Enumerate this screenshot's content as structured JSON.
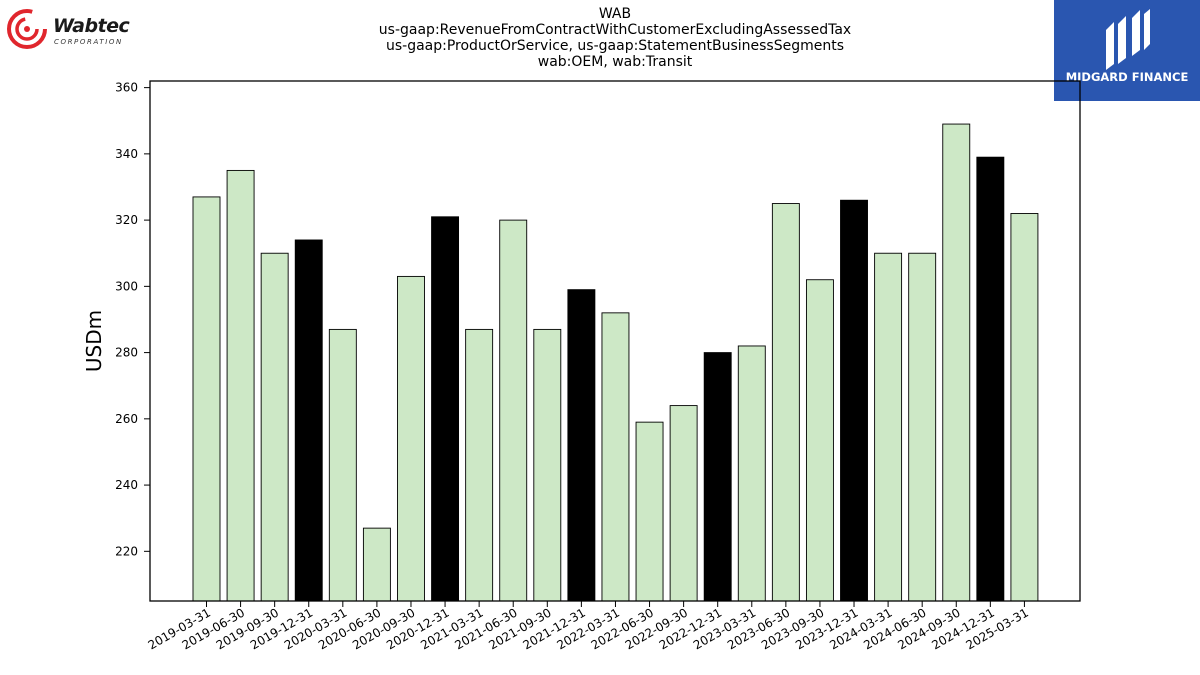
{
  "header": {
    "title_lines": [
      "WAB",
      "us-gaap:RevenueFromContractWithCustomerExcludingAssessedTax",
      "us-gaap:ProductOrService, us-gaap:StatementBusinessSegments",
      "wab:OEM, wab:Transit"
    ]
  },
  "logos": {
    "left_brand": "Wabtec",
    "left_sub": "CORPORATION",
    "right_text": "MIDGARD FINANCE",
    "left_color": "#e0262d",
    "right_bg": "#2a56b0"
  },
  "chart_data": {
    "type": "bar",
    "ylabel": "USDm",
    "xlabel": "",
    "ylim": [
      205,
      362
    ],
    "yticks": [
      220,
      240,
      260,
      280,
      300,
      320,
      340,
      360
    ],
    "categories": [
      "2019-03-31",
      "2019-06-30",
      "2019-09-30",
      "2019-12-31",
      "2020-03-31",
      "2020-06-30",
      "2020-09-30",
      "2020-12-31",
      "2021-03-31",
      "2021-06-30",
      "2021-09-30",
      "2021-12-31",
      "2022-03-31",
      "2022-06-30",
      "2022-09-30",
      "2022-12-31",
      "2023-03-31",
      "2023-06-30",
      "2023-09-30",
      "2023-12-31",
      "2024-03-31",
      "2024-06-30",
      "2024-09-30",
      "2024-12-31",
      "2025-03-31"
    ],
    "values": [
      327,
      335,
      310,
      314,
      287,
      227,
      303,
      321,
      287,
      320,
      287,
      299,
      292,
      259,
      264,
      280,
      282,
      325,
      302,
      326,
      310,
      310,
      349,
      339,
      322
    ],
    "colors": {
      "quarter": "#cde8c6",
      "year_end": "#000000",
      "edge": "#000000"
    },
    "highlighted_categories": [
      "2019-12-31",
      "2020-12-31",
      "2021-12-31",
      "2022-12-31",
      "2023-12-31",
      "2024-12-31"
    ],
    "grid": false,
    "legend": "none"
  }
}
